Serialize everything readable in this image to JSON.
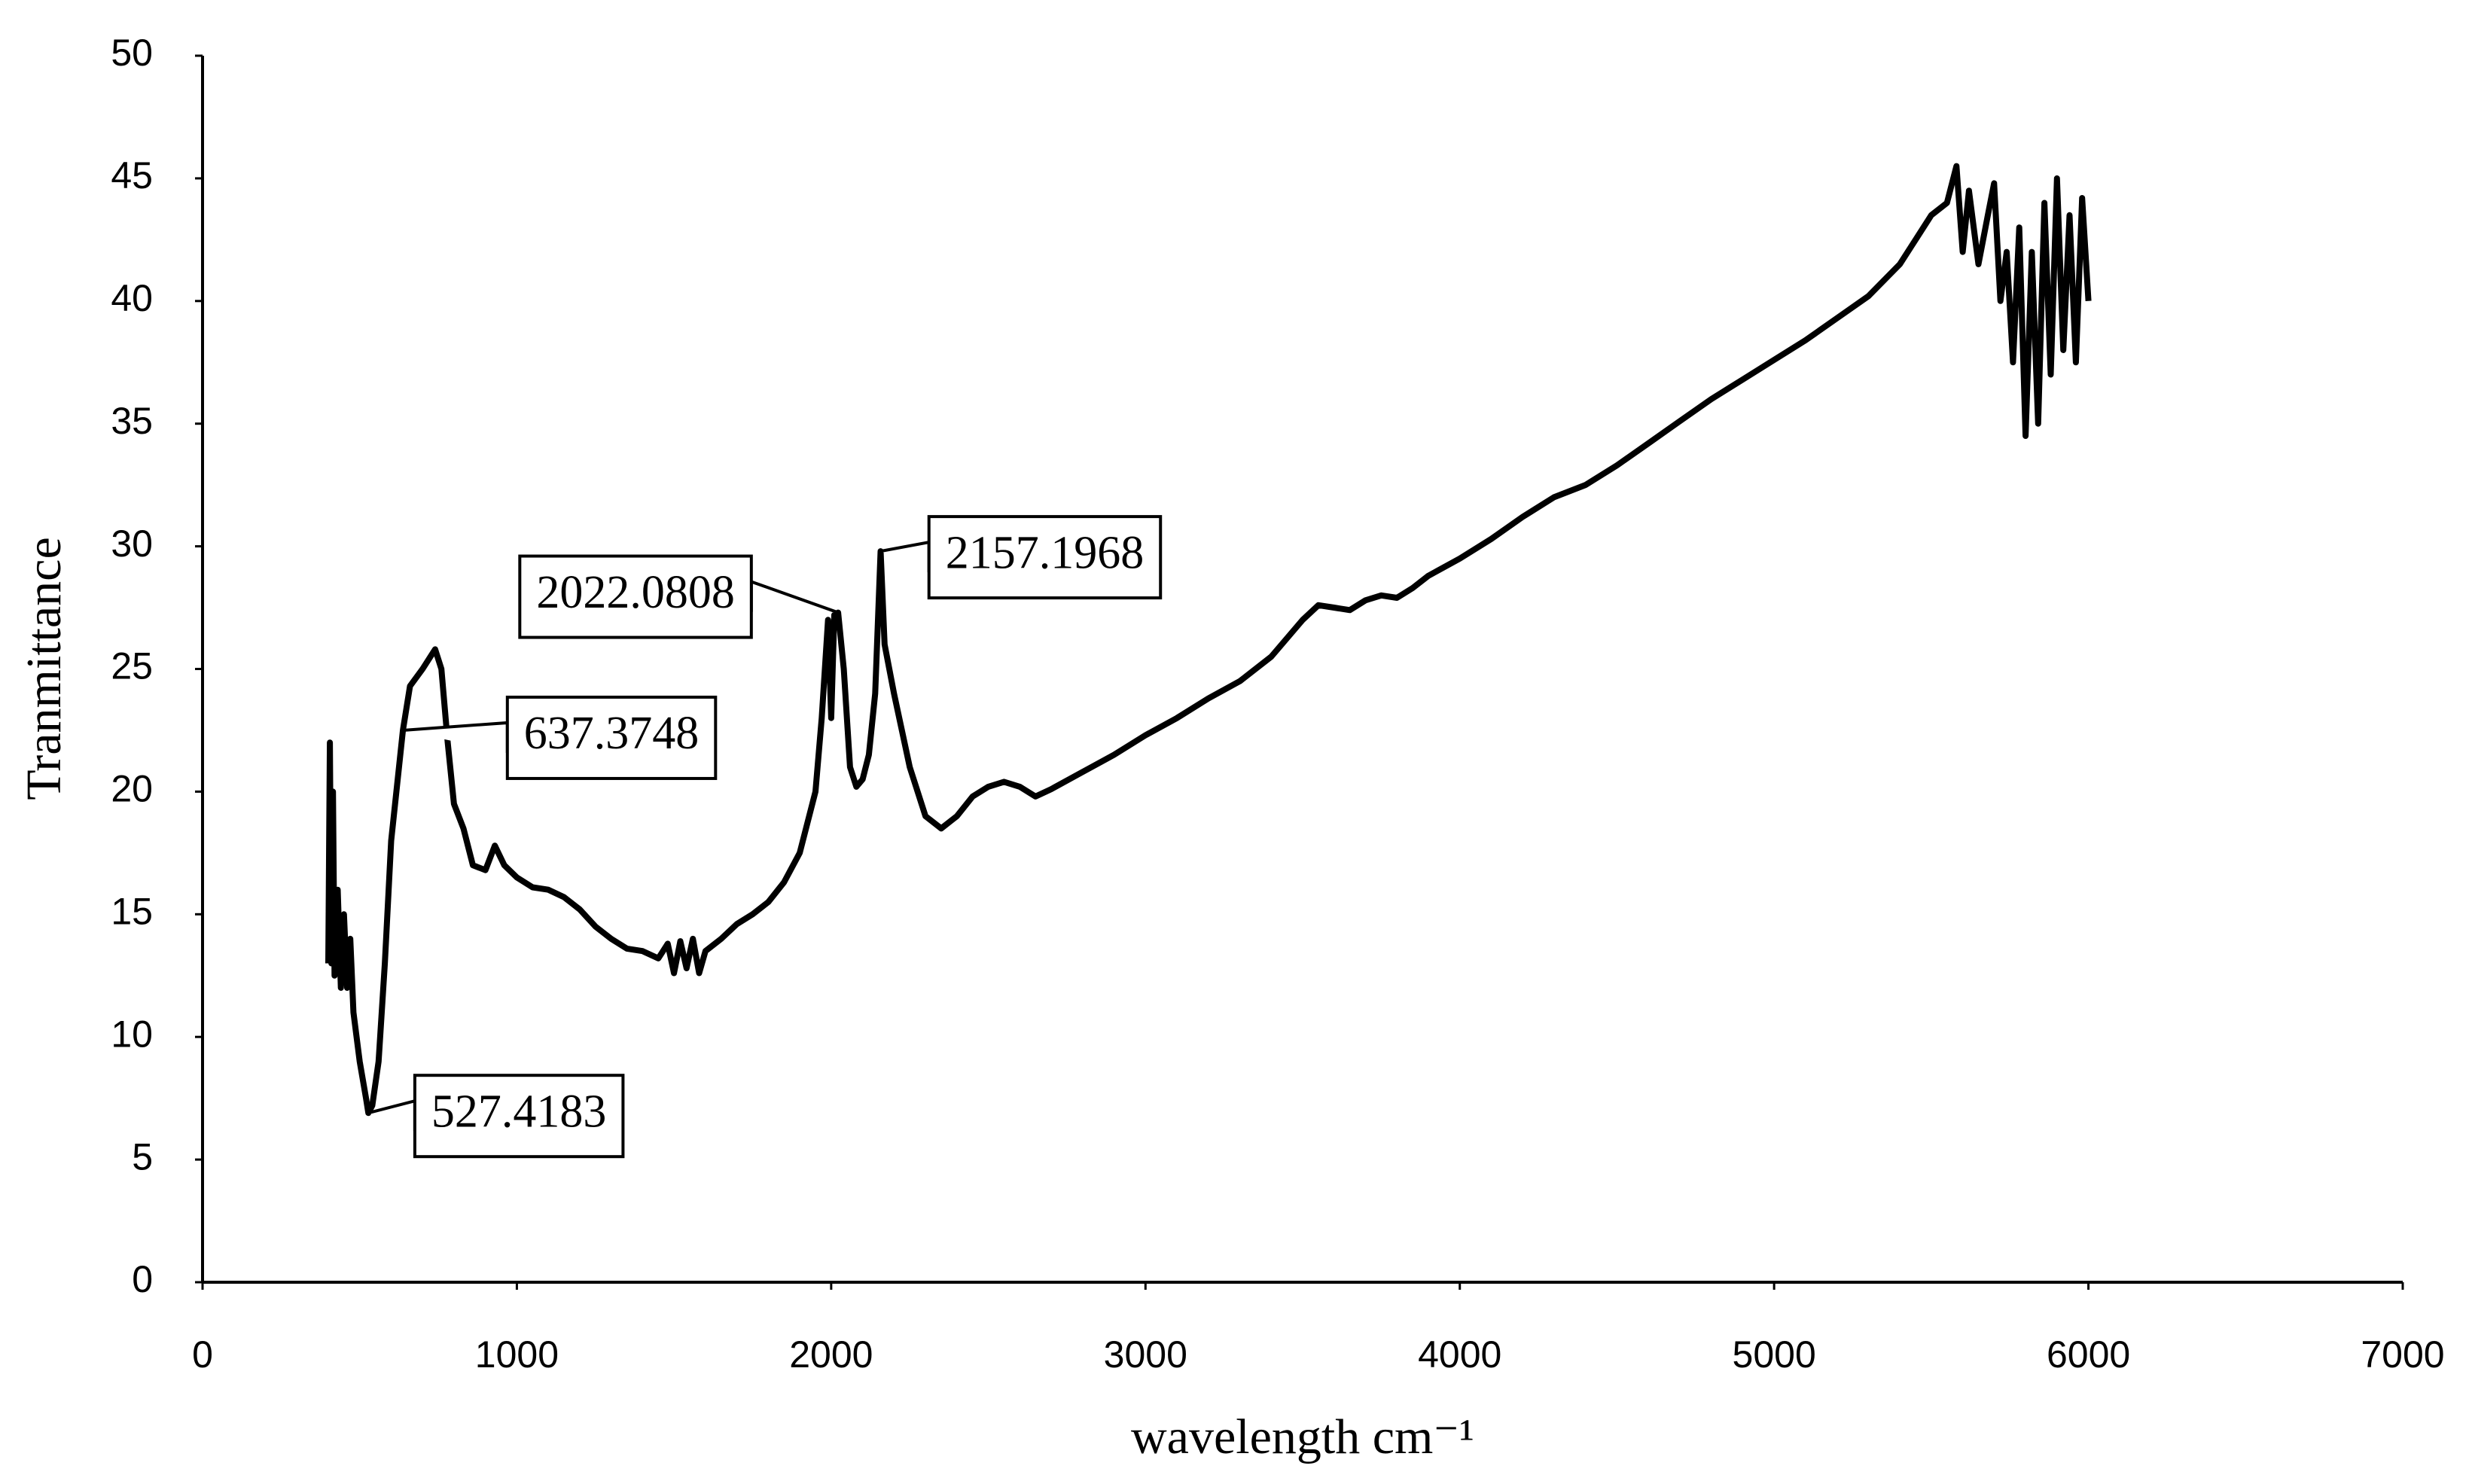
{
  "chart_data": {
    "type": "line",
    "x_label": "wavelength cm⁻¹",
    "y_label": "Tranmittance",
    "xlim": [
      0,
      7000
    ],
    "xticks": [
      0,
      1000,
      2000,
      3000,
      4000,
      5000,
      6000,
      7000
    ],
    "ylim": [
      0,
      50
    ],
    "yticks": [
      0,
      5,
      10,
      15,
      20,
      25,
      30,
      35,
      40,
      45,
      50
    ],
    "x": [
      400,
      405,
      410,
      415,
      420,
      430,
      440,
      450,
      460,
      470,
      480,
      500,
      520,
      527.4183,
      540,
      560,
      580,
      600,
      637.3748,
      660,
      700,
      740,
      760,
      780,
      800,
      830,
      860,
      900,
      930,
      960,
      1000,
      1050,
      1100,
      1150,
      1200,
      1250,
      1300,
      1350,
      1400,
      1450,
      1480,
      1500,
      1520,
      1540,
      1560,
      1580,
      1600,
      1650,
      1700,
      1750,
      1800,
      1850,
      1900,
      1950,
      1970,
      1990,
      2000,
      2010,
      2022.0808,
      2040,
      2060,
      2080,
      2100,
      2120,
      2140,
      2157.1968,
      2170,
      2200,
      2250,
      2300,
      2350,
      2400,
      2450,
      2500,
      2550,
      2600,
      2650,
      2700,
      2800,
      2900,
      3000,
      3100,
      3200,
      3300,
      3400,
      3500,
      3550,
      3600,
      3650,
      3700,
      3750,
      3800,
      3850,
      3900,
      4000,
      4100,
      4200,
      4300,
      4400,
      4500,
      4600,
      4700,
      4800,
      4900,
      5000,
      5100,
      5200,
      5300,
      5400,
      5450,
      5500,
      5550,
      5580,
      5600,
      5620,
      5650,
      5680,
      5700,
      5720,
      5740,
      5760,
      5780,
      5800,
      5820,
      5840,
      5860,
      5880,
      5900,
      5920,
      5940,
      5960,
      5980,
      6000
    ],
    "series": [
      {
        "name": "Tranmittance",
        "color": "#000000",
        "values": [
          13,
          22,
          13,
          20,
          12.5,
          16,
          12,
          15,
          12,
          14,
          11,
          9,
          7.5,
          6.9,
          7.2,
          9,
          13,
          18,
          22.5,
          24.3,
          25,
          25.8,
          25,
          22,
          19.5,
          18.5,
          17,
          16.8,
          17.8,
          17,
          16.5,
          16.1,
          16,
          15.7,
          15.2,
          14.5,
          14,
          13.6,
          13.5,
          13.2,
          13.8,
          12.6,
          13.9,
          12.8,
          14,
          12.6,
          13.5,
          14,
          14.6,
          15,
          15.5,
          16.3,
          17.5,
          20,
          23,
          27,
          23,
          27.2,
          27.3,
          25,
          21,
          20.2,
          20.5,
          21.5,
          24,
          29.8,
          26,
          24,
          21,
          19,
          18.5,
          19,
          19.8,
          20.2,
          20.4,
          20.2,
          19.8,
          20.1,
          20.8,
          21.5,
          22.3,
          23,
          23.8,
          24.5,
          25.5,
          27,
          27.6,
          27.5,
          27.4,
          27.8,
          28,
          27.9,
          28.3,
          28.8,
          29.5,
          30.3,
          31.2,
          32,
          32.5,
          33.3,
          34.2,
          35.1,
          36,
          36.8,
          37.6,
          38.4,
          39.3,
          40.2,
          41.5,
          42.5,
          43.5,
          44,
          45.5,
          42,
          44.5,
          41.5,
          43.5,
          44.8,
          40,
          42,
          37.5,
          43,
          34.5,
          42,
          35,
          44,
          37,
          45,
          38,
          43.5,
          37.5,
          44.2,
          40
        ]
      }
    ],
    "annotations": [
      {
        "x": 527.4183,
        "y": 6.9
      },
      {
        "x": 637.3748,
        "y": 22.5
      },
      {
        "x": 2022.0808,
        "y": 27.3
      },
      {
        "x": 2157.1968,
        "y": 29.8
      }
    ]
  }
}
